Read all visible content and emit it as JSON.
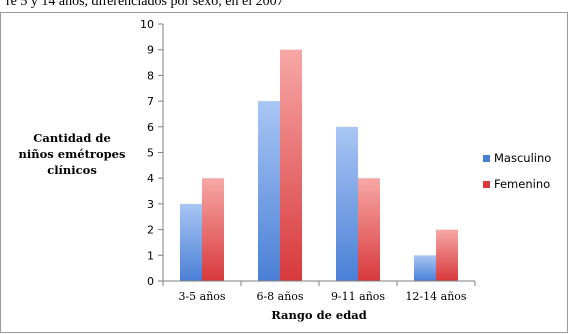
{
  "header": {
    "partial_text": "re 5 y 14 años, diferenciados por sexo, en el 2007"
  },
  "chart_data": {
    "type": "bar",
    "title": "",
    "xlabel": "Rango de edad",
    "ylabel": [
      "Cantidad de",
      "niños emétropes",
      "clínicos"
    ],
    "categories": [
      "3-5 años",
      "6-8 años",
      "9-11 años",
      "12-14 años"
    ],
    "series": [
      {
        "name": "Masculino",
        "values": [
          3,
          7,
          6,
          1
        ],
        "color_top": "#a9c6f4",
        "color_bottom": "#4a7fd6"
      },
      {
        "name": "Femenino",
        "values": [
          4,
          9,
          4,
          2
        ],
        "color_top": "#f7a8a6",
        "color_bottom": "#d8393c"
      }
    ],
    "ylim": [
      0,
      10
    ],
    "yticks": [
      "0",
      "1",
      "2",
      "3",
      "4",
      "5",
      "6",
      "7",
      "8",
      "9",
      "10"
    ],
    "grid": false,
    "legend_position": "right"
  }
}
